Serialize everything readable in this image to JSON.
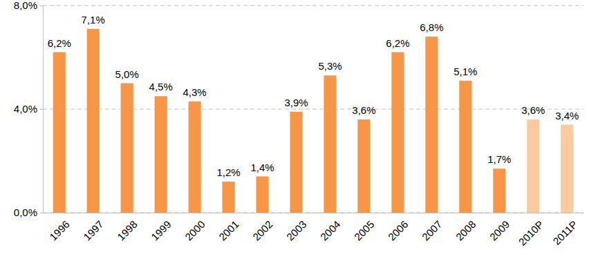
{
  "chart_data": {
    "type": "bar",
    "categories": [
      "1996",
      "1997",
      "1998",
      "1999",
      "2000",
      "2001",
      "2002",
      "2003",
      "2004",
      "2005",
      "2006",
      "2007",
      "2008",
      "2009",
      "2010P",
      "2011P"
    ],
    "values": [
      6.2,
      7.1,
      5.0,
      4.5,
      4.3,
      1.2,
      1.4,
      3.9,
      5.3,
      3.6,
      6.2,
      6.8,
      5.1,
      1.7,
      3.6,
      3.4
    ],
    "value_labels": [
      "6,2%",
      "7,1%",
      "5,0%",
      "4,5%",
      "4,3%",
      "1,2%",
      "1,4%",
      "3,9%",
      "5,3%",
      "3,6%",
      "6,2%",
      "6,8%",
      "5,1%",
      "1,7%",
      "3,6%",
      "3,4%"
    ],
    "colors": [
      "#f79646",
      "#f79646",
      "#f79646",
      "#f79646",
      "#f79646",
      "#f79646",
      "#f79646",
      "#f79646",
      "#f79646",
      "#f79646",
      "#f79646",
      "#f79646",
      "#f79646",
      "#f79646",
      "#fbcb9f",
      "#fbcb9f"
    ],
    "ylim": [
      0,
      8
    ],
    "yticks": [
      {
        "value": 0,
        "label": "0,0%"
      },
      {
        "value": 4,
        "label": "4,0%"
      },
      {
        "value": 8,
        "label": "8,0%"
      }
    ],
    "grid": true,
    "data_labels": true
  }
}
